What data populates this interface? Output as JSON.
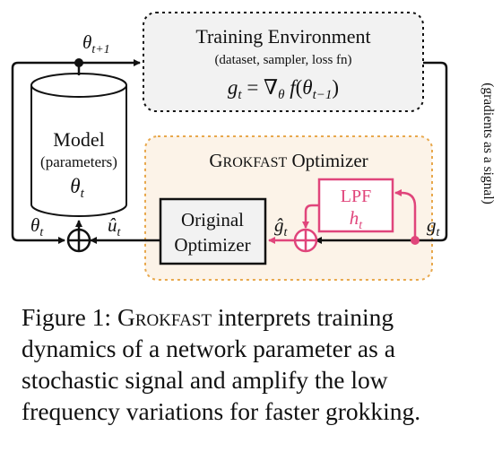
{
  "diagram": {
    "training_env": {
      "title": "Training Environment",
      "subtitle": "(dataset, sampler, loss fn)",
      "formula": "g_t = ∇_θ f(θ_{t−1})"
    },
    "model": {
      "title": "Model",
      "subtitle": "(parameters)",
      "symbol": "θt"
    },
    "grokfast_box": {
      "title": "Grokfast Optimizer"
    },
    "original_optimizer": {
      "line1": "Original",
      "line2": "Optimizer"
    },
    "lpf": {
      "title": "LPF",
      "symbol": "ht"
    },
    "labels": {
      "theta_next": "θt+1",
      "theta_t": "θt",
      "u_hat": "ût",
      "g_hat": "ĝt",
      "g_t": "gt",
      "side_note": "(gradients as a signal)"
    },
    "colors": {
      "pink": "#e0457b",
      "grokfast_fill": "#fcf3e8",
      "grokfast_border": "#e8a84c",
      "env_fill": "#f2f2f2",
      "black": "#111111"
    }
  },
  "caption": {
    "figure_label": "Figure 1:",
    "name": "Grokfast",
    "text": "interprets training dynamics of a network parameter as a stochastic signal and amplify the low frequency variations for faster grokking."
  }
}
